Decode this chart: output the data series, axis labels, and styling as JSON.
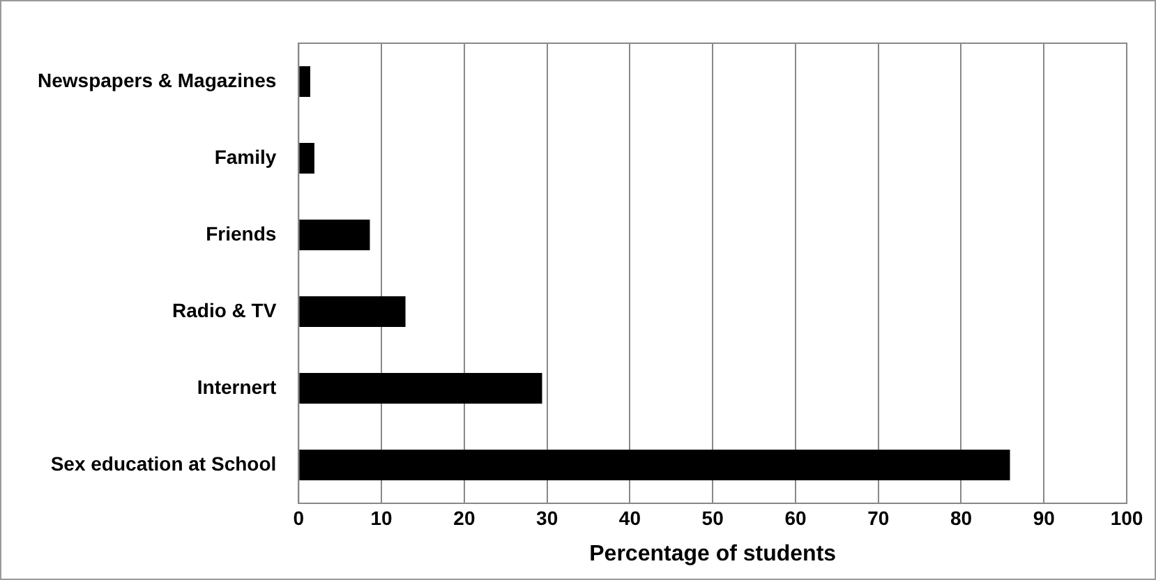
{
  "chart_data": {
    "type": "bar",
    "orientation": "horizontal",
    "xlabel": "Percentage of students",
    "categories": [
      "Newspapers & Magazines",
      "Family",
      "Friends",
      "Radio & TV",
      "Internert",
      "Sex education at School"
    ],
    "values": [
      1.4,
      1.9,
      8.6,
      12.9,
      29.4,
      85.9
    ],
    "color": "#000000",
    "xlim": [
      0,
      100
    ],
    "xticks": [
      0,
      10,
      20,
      30,
      40,
      50,
      60,
      70,
      80,
      90,
      100
    ],
    "grid": "x",
    "legend": false
  }
}
